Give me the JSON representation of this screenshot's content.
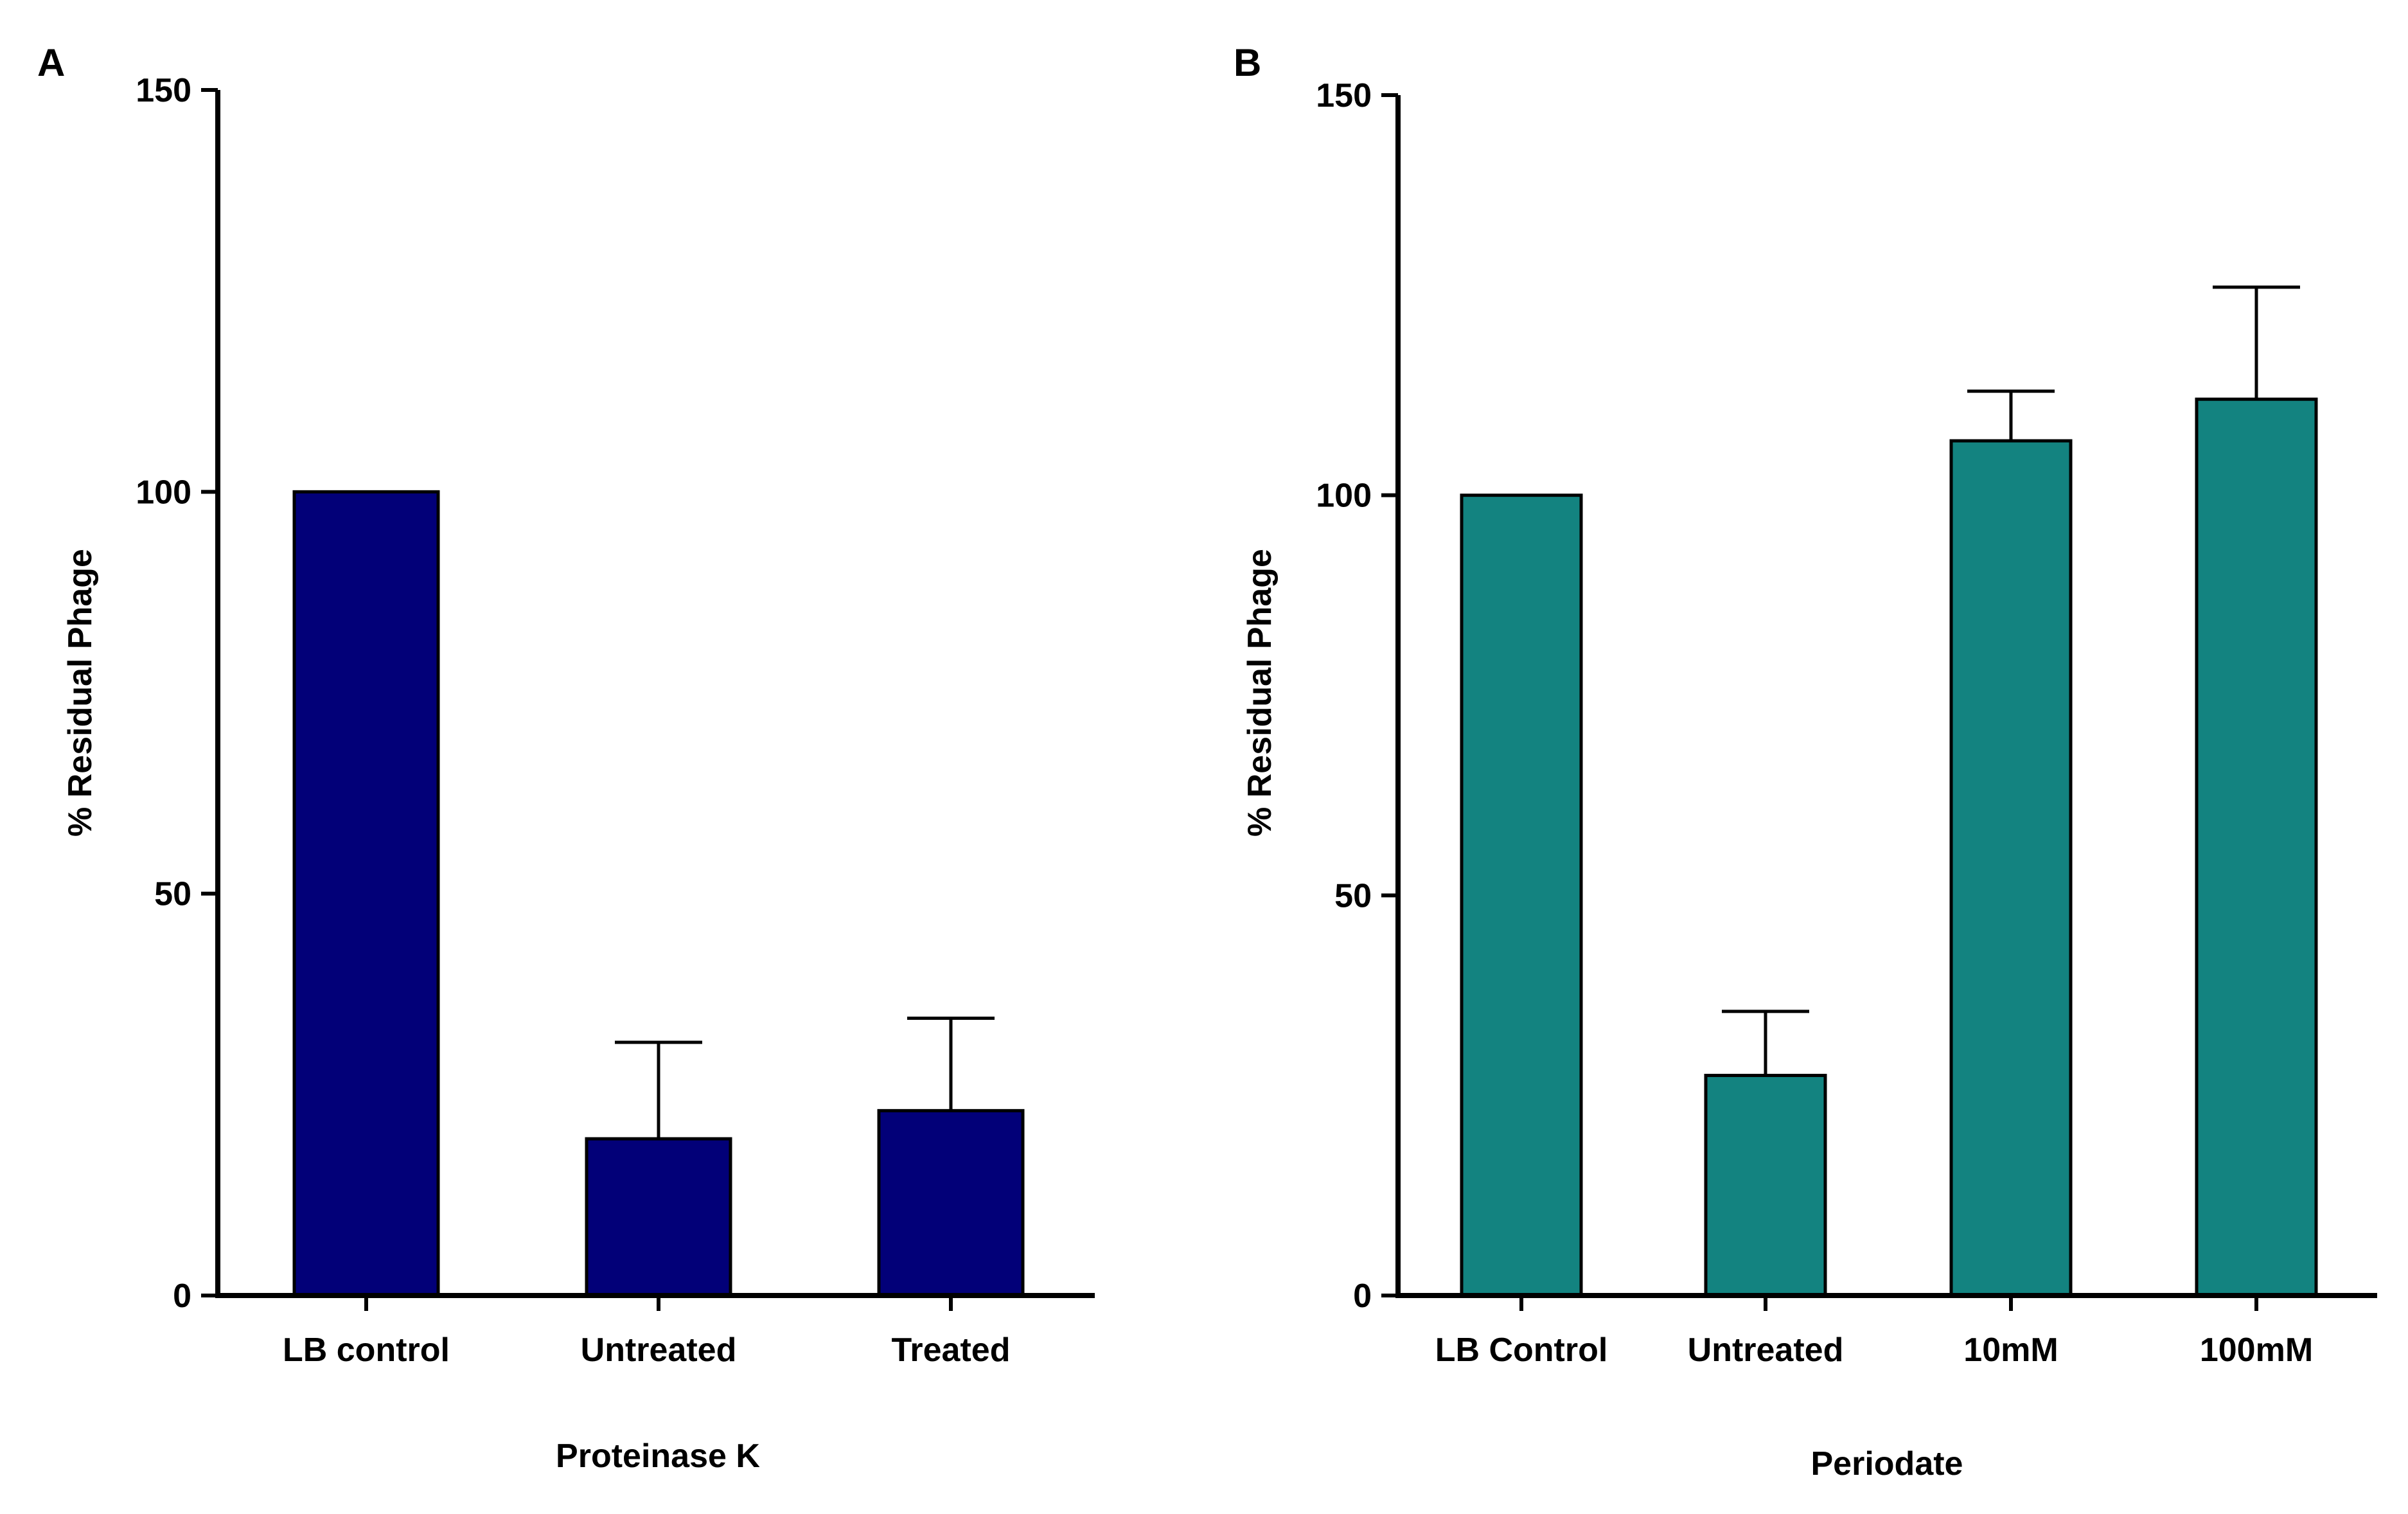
{
  "figure": {
    "panels": [
      "A",
      "B"
    ]
  },
  "chart_data": [
    {
      "type": "bar",
      "panel_label": "A",
      "title": "",
      "categories": [
        "LB control",
        "Untreated",
        "Treated"
      ],
      "values": [
        100,
        19.5,
        23
      ],
      "errors": [
        0,
        12,
        11.5
      ],
      "xlabel": "Proteinase K",
      "ylabel": "% Residual Phage",
      "ylim": [
        0,
        150
      ],
      "yticks": [
        "0",
        "50",
        "100",
        "150"
      ],
      "bar_color": "#020078",
      "grid": false
    },
    {
      "type": "bar",
      "panel_label": "B",
      "title": "",
      "categories": [
        "LB Control",
        "Untreated",
        "10mM",
        "100mM"
      ],
      "values": [
        100,
        27.5,
        106.8,
        112
      ],
      "errors": [
        0,
        8,
        6.2,
        14
      ],
      "xlabel": "Periodate",
      "ylabel": "% Residual Phage",
      "ylim": [
        0,
        150
      ],
      "yticks": [
        "0",
        "50",
        "100",
        "150"
      ],
      "bar_color": "#138380",
      "grid": false
    }
  ]
}
